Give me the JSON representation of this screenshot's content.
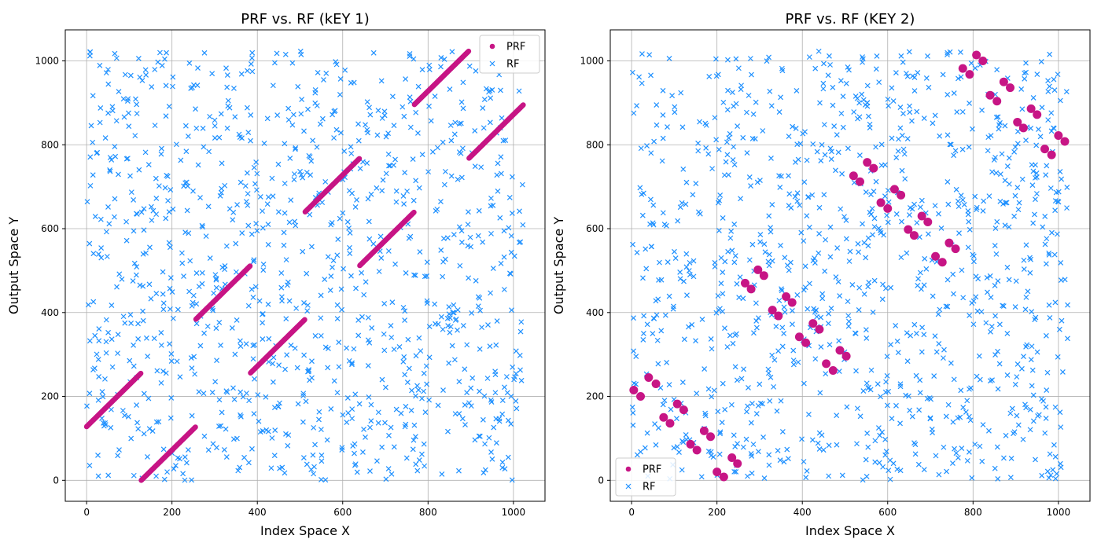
{
  "chart_data": [
    {
      "type": "scatter",
      "title": "PRF vs. RF (kEY 1)",
      "xlabel": "Index Space X",
      "ylabel": "Output Space Y",
      "xlim": [
        -50,
        1074
      ],
      "ylim": [
        -50,
        1074
      ],
      "xticks": [
        0,
        200,
        400,
        600,
        800,
        1000
      ],
      "yticks": [
        0,
        200,
        400,
        600,
        800,
        1000
      ],
      "grid": true,
      "legend_position": "top-right",
      "series": [
        {
          "name": "PRF",
          "color": "#c71585",
          "marker": "circle",
          "segments": [
            {
              "x0": 0,
              "y0": 128,
              "x1": 127,
              "y1": 255
            },
            {
              "x0": 128,
              "y0": 0,
              "x1": 255,
              "y1": 127
            },
            {
              "x0": 256,
              "y0": 384,
              "x1": 383,
              "y1": 511
            },
            {
              "x0": 384,
              "y0": 256,
              "x1": 511,
              "y1": 383
            },
            {
              "x0": 512,
              "y0": 640,
              "x1": 639,
              "y1": 767
            },
            {
              "x0": 640,
              "y0": 512,
              "x1": 767,
              "y1": 639
            },
            {
              "x0": 768,
              "y0": 896,
              "x1": 895,
              "y1": 1023
            },
            {
              "x0": 896,
              "y0": 768,
              "x1": 1023,
              "y1": 895
            }
          ]
        },
        {
          "name": "RF",
          "color": "#1e90ff",
          "marker": "x",
          "seed": 7,
          "count": 1024,
          "range": [
            0,
            1023
          ]
        }
      ]
    },
    {
      "type": "scatter",
      "title": "PRF vs. RF (KEY 2)",
      "xlabel": "Index Space X",
      "ylabel": "Output Space Y",
      "xlim": [
        -50,
        1074
      ],
      "ylim": [
        -50,
        1074
      ],
      "xticks": [
        0,
        200,
        400,
        600,
        800,
        1000
      ],
      "yticks": [
        0,
        200,
        400,
        600,
        800,
        1000
      ],
      "grid": true,
      "legend_position": "bottom-left",
      "series": [
        {
          "name": "PRF",
          "color": "#c71585",
          "marker": "circle",
          "points": [
            [
              5,
              215
            ],
            [
              21,
              200
            ],
            [
              40,
              245
            ],
            [
              57,
              230
            ],
            [
              75,
              150
            ],
            [
              90,
              136
            ],
            [
              107,
              182
            ],
            [
              122,
              168
            ],
            [
              138,
              86
            ],
            [
              153,
              72
            ],
            [
              170,
              118
            ],
            [
              185,
              104
            ],
            [
              200,
              20
            ],
            [
              216,
              8
            ],
            [
              235,
              54
            ],
            [
              248,
              40
            ],
            [
              266,
              470
            ],
            [
              280,
              456
            ],
            [
              296,
              502
            ],
            [
              310,
              488
            ],
            [
              330,
              406
            ],
            [
              344,
              392
            ],
            [
              362,
              438
            ],
            [
              376,
              424
            ],
            [
              393,
              342
            ],
            [
              408,
              328
            ],
            [
              425,
              374
            ],
            [
              440,
              360
            ],
            [
              456,
              278
            ],
            [
              472,
              262
            ],
            [
              488,
              310
            ],
            [
              503,
              296
            ],
            [
              520,
              726
            ],
            [
              535,
              712
            ],
            [
              552,
              758
            ],
            [
              567,
              744
            ],
            [
              584,
              662
            ],
            [
              600,
              648
            ],
            [
              616,
              694
            ],
            [
              631,
              680
            ],
            [
              648,
              598
            ],
            [
              662,
              584
            ],
            [
              680,
              630
            ],
            [
              694,
              616
            ],
            [
              712,
              534
            ],
            [
              728,
              520
            ],
            [
              744,
              566
            ],
            [
              759,
              552
            ],
            [
              776,
              982
            ],
            [
              792,
              968
            ],
            [
              808,
              1014
            ],
            [
              823,
              1000
            ],
            [
              840,
              918
            ],
            [
              856,
              904
            ],
            [
              872,
              950
            ],
            [
              887,
              936
            ],
            [
              904,
              854
            ],
            [
              918,
              840
            ],
            [
              936,
              886
            ],
            [
              950,
              872
            ],
            [
              968,
              790
            ],
            [
              984,
              776
            ],
            [
              1000,
              822
            ],
            [
              1015,
              808
            ]
          ]
        },
        {
          "name": "RF",
          "color": "#1e90ff",
          "marker": "x",
          "seed": 13,
          "count": 1024,
          "range": [
            0,
            1023
          ]
        }
      ]
    }
  ]
}
